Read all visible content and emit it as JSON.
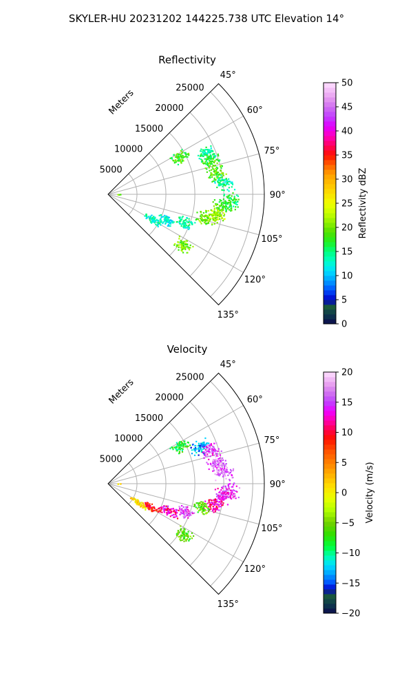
{
  "figure": {
    "suptitle": "SKYLER-HU  20231202  144225.738 UTC Elevation 14°"
  },
  "chart_data": [
    {
      "type": "scatter",
      "projection": "polar-sector",
      "title": "Reflectivity",
      "radial_label": "Meters",
      "radial_ticks": [
        "5000",
        "10000",
        "15000",
        "20000",
        "25000"
      ],
      "radial_tick_values": [
        5000,
        10000,
        15000,
        20000,
        25000
      ],
      "r_max": 27000,
      "angle_ticks": [
        "45°",
        "60°",
        "75°",
        "90°",
        "105°",
        "120°",
        "135°"
      ],
      "angle_tick_values": [
        45,
        60,
        75,
        90,
        105,
        120,
        135
      ],
      "theta_range": [
        45,
        135
      ],
      "grid": true,
      "colorbar": {
        "label": "Reflectivity dBZ",
        "min": 0,
        "max": 50,
        "ticks": [
          "0",
          "5",
          "10",
          "15",
          "20",
          "25",
          "30",
          "35",
          "40",
          "45",
          "50"
        ],
        "tick_values": [
          0,
          5,
          10,
          15,
          20,
          25,
          30,
          35,
          40,
          45,
          50
        ]
      },
      "clusters": [
        {
          "az": 62,
          "r": 14000,
          "value": 18
        },
        {
          "az": 67,
          "r": 18500,
          "value": 14
        },
        {
          "az": 72,
          "r": 18600,
          "value": 18
        },
        {
          "az": 79,
          "r": 19000,
          "value": 19
        },
        {
          "az": 84,
          "r": 20000,
          "value": 14
        },
        {
          "az": 93,
          "r": 21000,
          "value": 16
        },
        {
          "az": 96,
          "r": 19700,
          "value": 18
        },
        {
          "az": 101,
          "r": 18800,
          "value": 22
        },
        {
          "az": 103,
          "r": 17000,
          "value": 20
        },
        {
          "az": 110,
          "r": 14000,
          "value": 14
        },
        {
          "az": 114,
          "r": 11000,
          "value": 12
        },
        {
          "az": 119,
          "r": 8800,
          "value": 13
        },
        {
          "az": 124,
          "r": 15500,
          "value": 20
        },
        {
          "az": 88,
          "r": 1800,
          "value": 19
        }
      ]
    },
    {
      "type": "scatter",
      "projection": "polar-sector",
      "title": "Velocity",
      "radial_label": "Meters",
      "radial_ticks": [
        "5000",
        "10000",
        "15000",
        "20000",
        "25000"
      ],
      "radial_tick_values": [
        5000,
        10000,
        15000,
        20000,
        25000
      ],
      "r_max": 27000,
      "angle_ticks": [
        "45°",
        "60°",
        "75°",
        "90°",
        "105°",
        "120°",
        "135°"
      ],
      "angle_tick_values": [
        45,
        60,
        75,
        90,
        105,
        120,
        135
      ],
      "theta_range": [
        45,
        135
      ],
      "grid": true,
      "colorbar": {
        "label": "Velocity (m/s)",
        "min": -20,
        "max": 20,
        "ticks": [
          "−20",
          "−15",
          "−10",
          "−5",
          "0",
          "5",
          "10",
          "15",
          "20"
        ],
        "tick_values": [
          -20,
          -15,
          -10,
          -5,
          0,
          5,
          10,
          15,
          20
        ]
      },
      "clusters": [
        {
          "az": 62,
          "r": 14000,
          "value": -8
        },
        {
          "az": 68,
          "r": 17000,
          "value": -13
        },
        {
          "az": 72,
          "r": 18500,
          "value": 15
        },
        {
          "az": 79,
          "r": 19000,
          "value": 16
        },
        {
          "az": 84,
          "r": 20000,
          "value": 16
        },
        {
          "az": 93,
          "r": 21000,
          "value": 15
        },
        {
          "az": 96,
          "r": 19700,
          "value": 14
        },
        {
          "az": 101,
          "r": 18500,
          "value": 12
        },
        {
          "az": 104,
          "r": 16500,
          "value": -6
        },
        {
          "az": 110,
          "r": 14000,
          "value": 15
        },
        {
          "az": 114,
          "r": 11500,
          "value": 12
        },
        {
          "az": 118,
          "r": 8500,
          "value": 9
        },
        {
          "az": 122,
          "r": 6200,
          "value": 1
        },
        {
          "az": 124,
          "r": 15500,
          "value": -6
        },
        {
          "az": 88,
          "r": 1800,
          "value": 2
        }
      ]
    }
  ]
}
